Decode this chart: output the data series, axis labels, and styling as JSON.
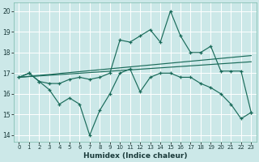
{
  "xlabel": "Humidex (Indice chaleur)",
  "bg_color": "#cce8e8",
  "grid_color": "#ffffff",
  "line_color": "#1a6b5a",
  "xlim": [
    -0.5,
    23.5
  ],
  "ylim": [
    13.7,
    20.4
  ],
  "yticks": [
    14,
    15,
    16,
    17,
    18,
    19,
    20
  ],
  "xticks": [
    0,
    1,
    2,
    3,
    4,
    5,
    6,
    7,
    8,
    9,
    10,
    11,
    12,
    13,
    14,
    15,
    16,
    17,
    18,
    19,
    20,
    21,
    22,
    23
  ],
  "line_jagged1_x": [
    0,
    1,
    2,
    3,
    4,
    5,
    6,
    7,
    8,
    9,
    10,
    11,
    12,
    13,
    14,
    15,
    16,
    17,
    18,
    19,
    20,
    21,
    22,
    23
  ],
  "line_jagged1_y": [
    16.8,
    17.0,
    16.6,
    16.2,
    15.5,
    15.8,
    15.5,
    14.0,
    15.2,
    16.0,
    17.0,
    17.2,
    16.1,
    16.8,
    17.0,
    17.0,
    16.8,
    16.8,
    16.5,
    16.3,
    16.0,
    15.5,
    14.8,
    15.1
  ],
  "line_jagged2_x": [
    0,
    1,
    2,
    3,
    4,
    5,
    6,
    7,
    8,
    9,
    10,
    11,
    12,
    13,
    14,
    15,
    16,
    17,
    18,
    19,
    20,
    21,
    22,
    23
  ],
  "line_jagged2_y": [
    16.8,
    17.0,
    16.6,
    16.5,
    16.5,
    16.7,
    16.8,
    16.7,
    16.8,
    17.0,
    18.6,
    18.5,
    18.8,
    19.1,
    18.5,
    20.0,
    18.8,
    18.0,
    18.0,
    18.3,
    17.1,
    17.1,
    17.1,
    15.1
  ],
  "trend1_x": [
    0,
    23
  ],
  "trend1_y": [
    16.8,
    17.85
  ],
  "trend2_x": [
    0,
    23
  ],
  "trend2_y": [
    16.8,
    17.55
  ]
}
